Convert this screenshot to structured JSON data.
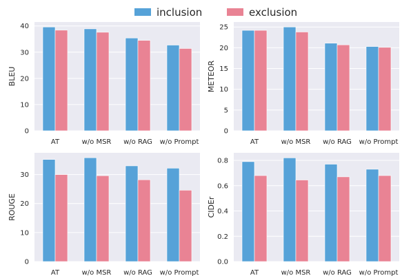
{
  "colors": {
    "inclusion": "#56a2d8",
    "exclusion": "#e98394",
    "panel_bg": "#eaeaf2",
    "grid": "#ffffff"
  },
  "legend": {
    "placement": "top-center",
    "items": [
      "inclusion",
      "exclusion"
    ]
  },
  "chart_data": [
    {
      "type": "bar",
      "categories": [
        "AT",
        "w/o MSR",
        "w/o RAG",
        "w/o Prompt"
      ],
      "ylabel": "BLEU",
      "ylim": [
        0,
        41.5
      ],
      "yticks": [
        0,
        10,
        20,
        30,
        40
      ],
      "grid": true,
      "series": [
        {
          "name": "inclusion",
          "values": [
            39.6,
            38.9,
            35.4,
            32.7
          ]
        },
        {
          "name": "exclusion",
          "values": [
            38.4,
            37.6,
            34.5,
            31.4
          ]
        }
      ]
    },
    {
      "type": "bar",
      "categories": [
        "AT",
        "w/o MSR",
        "w/o RAG",
        "w/o Prompt"
      ],
      "ylabel": "METEOR",
      "ylim": [
        0,
        26.2
      ],
      "yticks": [
        0,
        5,
        10,
        15,
        20,
        25
      ],
      "grid": true,
      "series": [
        {
          "name": "inclusion",
          "values": [
            24.2,
            25.0,
            21.1,
            20.3
          ]
        },
        {
          "name": "exclusion",
          "values": [
            24.2,
            23.8,
            20.7,
            20.1
          ]
        }
      ]
    },
    {
      "type": "bar",
      "categories": [
        "AT",
        "w/o MSR",
        "w/o RAG",
        "w/o Prompt"
      ],
      "ylabel": "ROUGE",
      "ylim": [
        0,
        37.5
      ],
      "yticks": [
        0,
        10,
        20,
        30
      ],
      "grid": true,
      "series": [
        {
          "name": "inclusion",
          "values": [
            35.2,
            35.8,
            33.0,
            32.2
          ]
        },
        {
          "name": "exclusion",
          "values": [
            30.0,
            29.6,
            28.2,
            24.6
          ]
        }
      ]
    },
    {
      "type": "bar",
      "categories": [
        "AT",
        "w/o MSR",
        "w/o RAG",
        "w/o Prompt"
      ],
      "ylabel": "CIDEr",
      "ylim": [
        0,
        0.86
      ],
      "yticks": [
        "0.0",
        "0.2",
        "0.4",
        "0.6",
        "0.8"
      ],
      "grid": true,
      "series": [
        {
          "name": "inclusion",
          "values": [
            0.79,
            0.82,
            0.77,
            0.73
          ]
        },
        {
          "name": "exclusion",
          "values": [
            0.68,
            0.645,
            0.67,
            0.68
          ]
        }
      ]
    }
  ]
}
